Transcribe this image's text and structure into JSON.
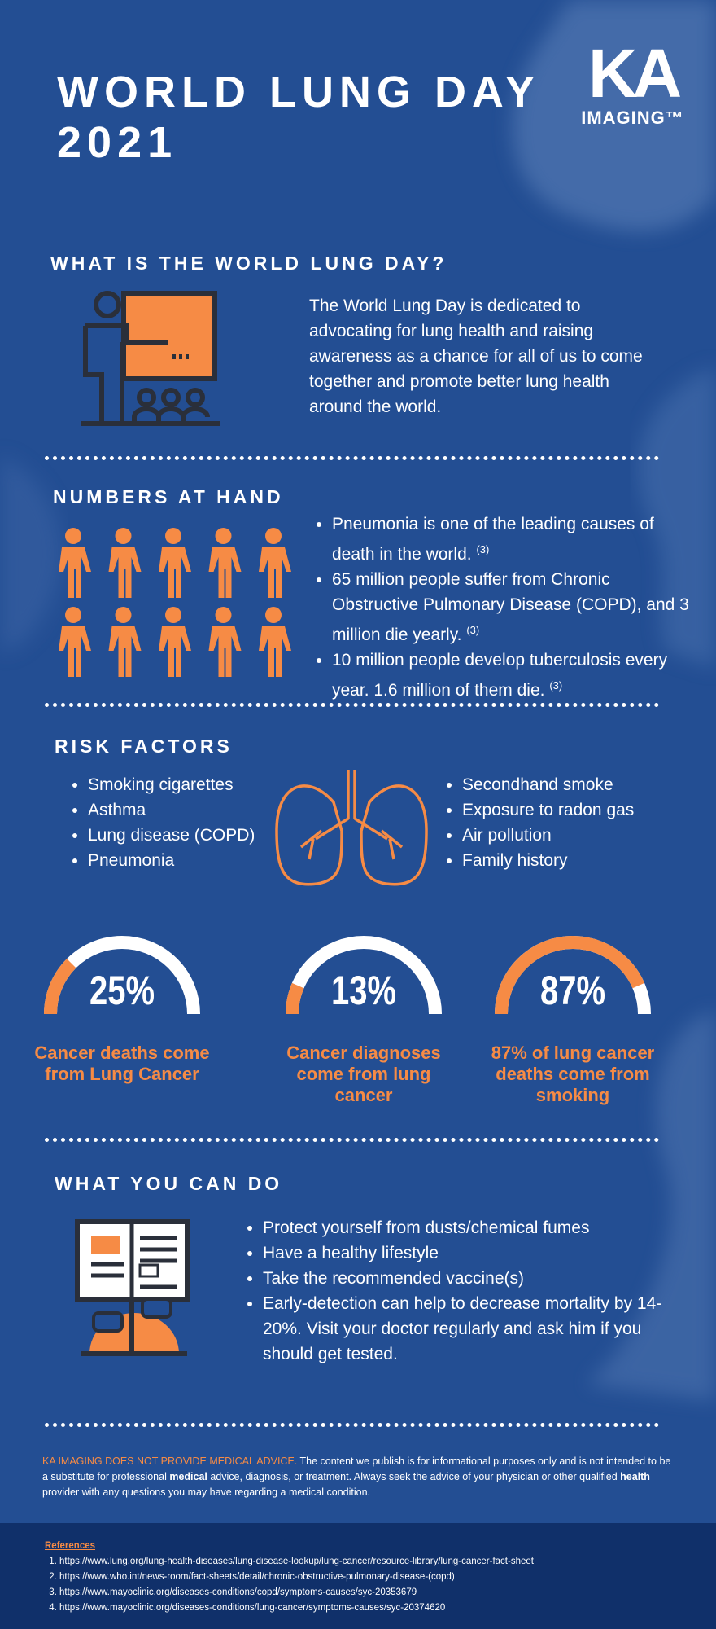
{
  "header": {
    "title_lines": [
      "WORLD LUNG DAY",
      "2021"
    ],
    "logo": {
      "main": "KA",
      "sub": "IMAGING™"
    }
  },
  "what_is": {
    "heading": "WHAT IS THE WORLD LUNG DAY?",
    "body": "The World Lung Day is dedicated to advocating for lung health and raising awareness as a chance for all of us to come together and promote better lung health around the world."
  },
  "numbers": {
    "heading": "NUMBERS AT HAND",
    "items": [
      {
        "text": "Pneumonia is one of the leading causes of death in the world.",
        "ref": "(3)"
      },
      {
        "text": "65 million people suffer from Chronic Obstructive Pulmonary Disease (COPD), and 3 million die yearly.",
        "ref": "(3)"
      },
      {
        "text": "10 million people develop tuberculosis every year. 1.6 million of them die.",
        "ref": "(3)"
      }
    ]
  },
  "risk": {
    "heading": "RISK FACTORS",
    "left": [
      "Smoking cigarettes",
      "Asthma",
      "Lung disease (COPD)",
      "Pneumonia"
    ],
    "right": [
      "Secondhand smoke",
      "Exposure to radon gas",
      "Air pollution",
      "Family history"
    ]
  },
  "stats": [
    {
      "value": 25,
      "label": "25%",
      "caption": "Cancer deaths come from Lung Cancer"
    },
    {
      "value": 13,
      "label": "13%",
      "caption": "Cancer diagnoses come from lung cancer"
    },
    {
      "value": 87,
      "label": "87%",
      "caption": "87% of lung cancer deaths come from smoking"
    }
  ],
  "todo": {
    "heading": "WHAT YOU CAN DO",
    "items": [
      "Protect yourself from dusts/chemical fumes",
      "Have a healthy lifestyle",
      "Take the recommended vaccine(s)",
      "Early-detection can help to decrease mortality by 14-20%. Visit your doctor regularly and ask him if you should get tested."
    ]
  },
  "disclaimer": [
    {
      "text": "KA IMAGING DOES NOT PROVIDE MEDICAL ADVICE.",
      "style": "lead"
    },
    {
      "text": " The content we publish is for informational purposes only and is not intended to be a substitute for professional ",
      "style": "plain"
    },
    {
      "text": "medical",
      "style": "bold"
    },
    {
      "text": " advice, diagnosis, or treatment. Always seek the advice of your physician or other qualified ",
      "style": "plain"
    },
    {
      "text": "health",
      "style": "bold"
    },
    {
      "text": " provider with any questions you may have regarding a medical condition.",
      "style": "plain"
    }
  ],
  "references": {
    "title": "References",
    "items": [
      "https://www.lung.org/lung-health-diseases/lung-disease-lookup/lung-cancer/resource-library/lung-cancer-fact-sheet",
      "https://www.who.int/news-room/fact-sheets/detail/chronic-obstructive-pulmonary-disease-(copd)",
      "https://www.mayoclinic.org/diseases-conditions/copd/symptoms-causes/syc-20353679",
      "https://www.mayoclinic.org/diseases-conditions/lung-cancer/symptoms-causes/syc-20374620"
    ]
  }
}
